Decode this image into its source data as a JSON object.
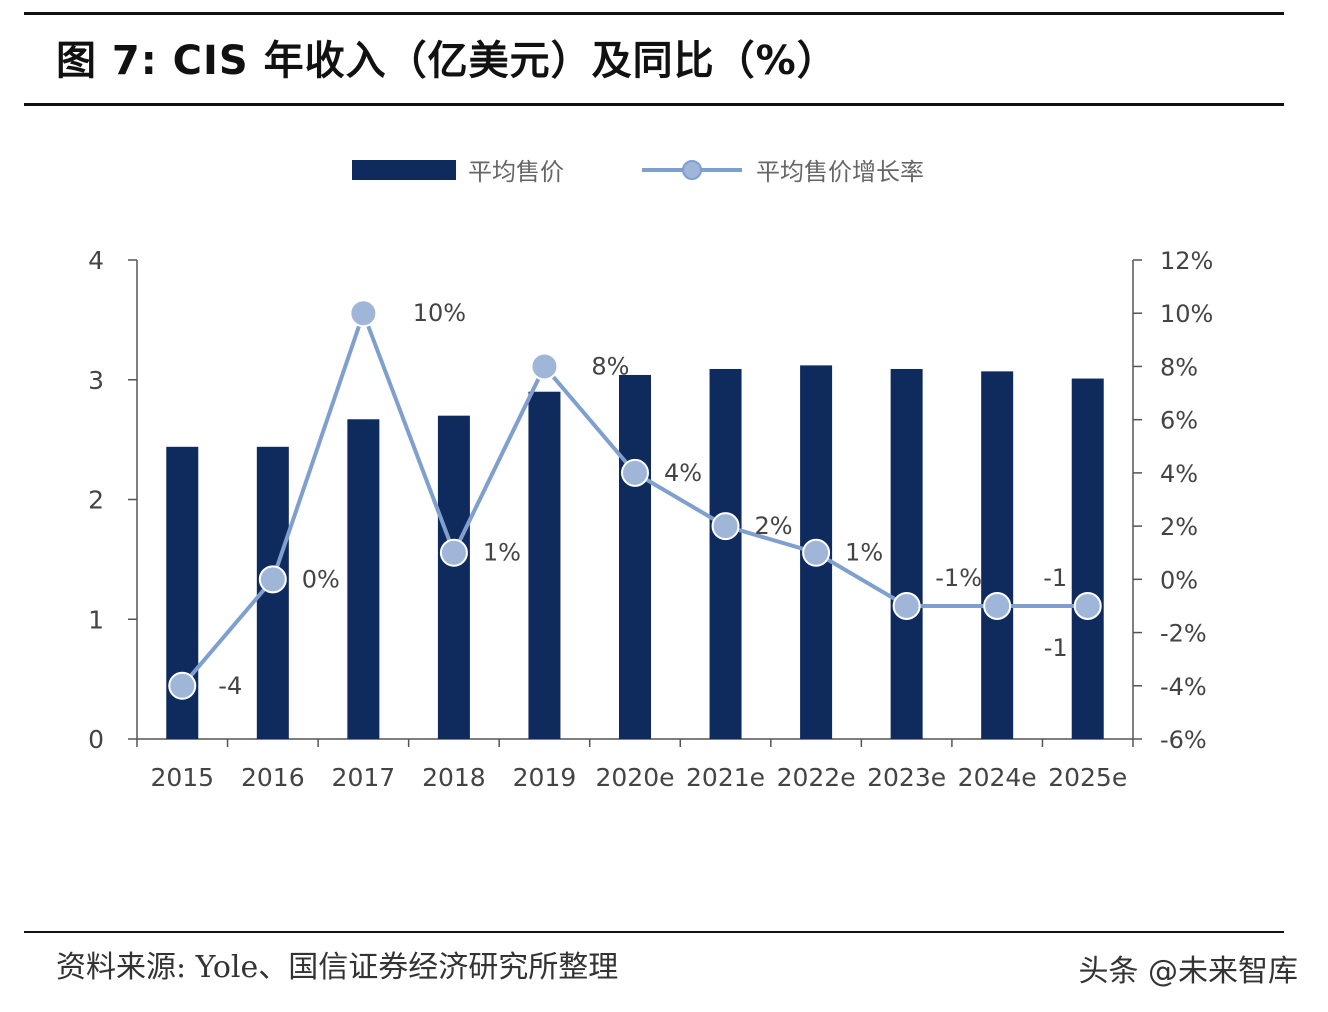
{
  "page": {
    "title": "图 7:  CIS 年收入（亿美元）及同比（%）",
    "source": "资料来源: Yole、国信证券经济研究所整理",
    "watermark": "头条 @未来智库"
  },
  "colors": {
    "bar": "#0f2a5c",
    "line": "#7f9fcf",
    "marker": "#9fb6d9",
    "axis": "#555555"
  },
  "chart_data": {
    "type": "bar",
    "title": "图 7:  CIS 年收入（亿美元）及同比（%）",
    "categories": [
      "2015",
      "2016",
      "2017",
      "2018",
      "2019",
      "2020e",
      "2021e",
      "2022e",
      "2023e",
      "2024e",
      "2025e"
    ],
    "series": [
      {
        "name": "平均售价",
        "type": "bar",
        "axis": "left",
        "values": [
          2.44,
          2.44,
          2.67,
          2.7,
          2.9,
          3.04,
          3.09,
          3.12,
          3.09,
          3.07,
          3.01
        ]
      },
      {
        "name": "平均售价增长率",
        "type": "line",
        "axis": "right",
        "values": [
          -4,
          0,
          10,
          1,
          8,
          4,
          2,
          1,
          -1,
          -1,
          -1
        ],
        "labels": [
          "-4",
          "0%",
          "10%",
          "1%",
          "8%",
          "4%",
          "2%",
          "1%",
          "-1%",
          "-1",
          "-1"
        ]
      }
    ],
    "y_left": {
      "min": 0,
      "max": 4,
      "ticks": [
        "0",
        "1",
        "2",
        "3",
        "4"
      ]
    },
    "y_right": {
      "min": -6,
      "max": 12,
      "ticks": [
        "-6%",
        "-4%",
        "-2%",
        "0%",
        "2%",
        "4%",
        "6%",
        "8%",
        "10%",
        "12%"
      ]
    },
    "legend_position": "top-center",
    "grid": false
  }
}
